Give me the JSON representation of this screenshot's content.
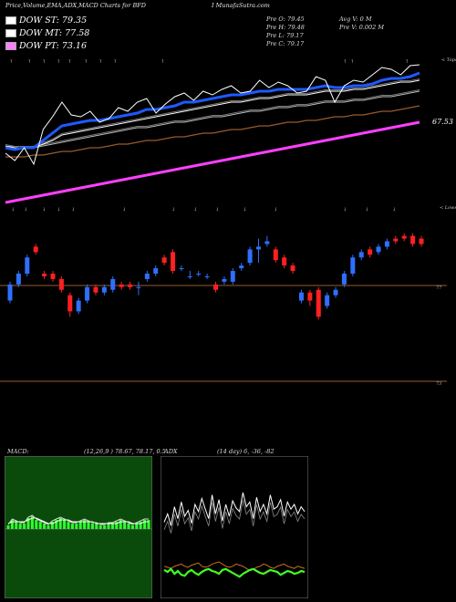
{
  "header": {
    "title": "Price,Volume,EMA,ADX,MACD Charts for BFD",
    "site": "I MunafaSutra.com"
  },
  "legend": [
    {
      "label": "DOW ST: 79.35",
      "color": "#ffffff"
    },
    {
      "label": "DOW MT: 77.58",
      "color": "#ffffff"
    },
    {
      "label": "DOW PT: 73.16",
      "color": "#ff80ff"
    }
  ],
  "ohlc": {
    "open": "Pre  O: 79.45",
    "high": "Pre  H: 79.48",
    "low": "Pre  L: 79.17",
    "close": "Pre  C: 79.17"
  },
  "volume": {
    "avg": "Avg V: 0  M",
    "pre": "Pre  V: 0.002  M"
  },
  "colors": {
    "up": "#2f6fff",
    "down": "#ff2020",
    "ema_fast": "#1e5aff",
    "ema_slow": "#9a5a2a",
    "dow_pt": "#ff40ff",
    "macd_bg": "#0a4a0a",
    "adx_line": "#ffffff",
    "di_plus": "#40ff20",
    "di_minus": "#d07020"
  },
  "chart_data": [
    {
      "type": "line",
      "name": "price-ema",
      "labels": {
        "right_value": "67.53",
        "top_note": "< Tops",
        "low_note": "< Lows"
      },
      "series": [
        {
          "name": "price",
          "values": [
            74.6,
            74.2,
            74.9,
            74.0,
            75.9,
            76.6,
            77.4,
            76.7,
            76.6,
            76.9,
            76.3,
            76.5,
            77.1,
            76.9,
            77.4,
            77.6,
            76.8,
            77.3,
            77.7,
            77.9,
            77.5,
            78.0,
            77.8,
            78.1,
            78.3,
            77.9,
            78.0,
            78.6,
            78.2,
            78.5,
            78.3,
            77.9,
            78.0,
            78.8,
            78.6,
            77.4,
            78.3,
            78.6,
            78.5,
            78.9,
            79.3,
            79.2,
            78.9,
            79.4,
            79.45
          ]
        },
        {
          "name": "ema-short",
          "values": [
            74.9,
            74.8,
            74.9,
            74.9,
            75.3,
            75.7,
            76.1,
            76.2,
            76.3,
            76.4,
            76.4,
            76.5,
            76.6,
            76.7,
            76.8,
            77.0,
            77.0,
            77.1,
            77.2,
            77.4,
            77.4,
            77.5,
            77.6,
            77.7,
            77.8,
            77.8,
            77.9,
            78.0,
            78.0,
            78.1,
            78.1,
            78.1,
            78.1,
            78.2,
            78.3,
            78.2,
            78.2,
            78.3,
            78.3,
            78.4,
            78.6,
            78.7,
            78.7,
            78.8,
            79.0
          ]
        },
        {
          "name": "ema-medium",
          "values": [
            75.0,
            74.9,
            74.9,
            74.9,
            75.1,
            75.3,
            75.6,
            75.7,
            75.8,
            75.9,
            76.0,
            76.1,
            76.2,
            76.3,
            76.4,
            76.5,
            76.6,
            76.7,
            76.8,
            76.9,
            77.0,
            77.1,
            77.2,
            77.3,
            77.4,
            77.4,
            77.5,
            77.6,
            77.6,
            77.7,
            77.8,
            77.8,
            77.8,
            77.9,
            78.0,
            78.0,
            78.0,
            78.1,
            78.1,
            78.2,
            78.3,
            78.4,
            78.5,
            78.5,
            78.6
          ]
        },
        {
          "name": "ema-long",
          "values": [
            74.9,
            74.9,
            74.9,
            74.9,
            75.0,
            75.1,
            75.2,
            75.3,
            75.4,
            75.5,
            75.6,
            75.7,
            75.8,
            75.9,
            76.0,
            76.0,
            76.1,
            76.2,
            76.3,
            76.3,
            76.4,
            76.5,
            76.6,
            76.6,
            76.7,
            76.8,
            76.9,
            76.9,
            77.0,
            77.1,
            77.1,
            77.2,
            77.2,
            77.3,
            77.4,
            77.4,
            77.4,
            77.5,
            77.5,
            77.6,
            77.7,
            77.7,
            77.8,
            77.9,
            78.0
          ]
        },
        {
          "name": "ema-slow",
          "values": [
            74.4,
            74.4,
            74.4,
            74.5,
            74.5,
            74.6,
            74.7,
            74.7,
            74.8,
            74.9,
            74.9,
            75.0,
            75.1,
            75.1,
            75.2,
            75.3,
            75.3,
            75.4,
            75.5,
            75.5,
            75.6,
            75.7,
            75.7,
            75.8,
            75.9,
            75.9,
            76.0,
            76.1,
            76.1,
            76.2,
            76.3,
            76.3,
            76.4,
            76.4,
            76.5,
            76.6,
            76.6,
            76.7,
            76.7,
            76.8,
            76.9,
            76.9,
            77.0,
            77.1,
            77.2
          ]
        },
        {
          "name": "dow-pt",
          "values": [
            71.9,
            72.0,
            72.1,
            72.2,
            72.3,
            72.4,
            72.5,
            72.6,
            72.7,
            72.8,
            72.9,
            73.0,
            73.1,
            73.2,
            73.3,
            73.4,
            73.5,
            73.6,
            73.7,
            73.8,
            73.9,
            74.0,
            74.1,
            74.2,
            74.3,
            74.4,
            74.5,
            74.6,
            74.7,
            74.8,
            74.9,
            75.0,
            75.1,
            75.2,
            75.3,
            75.4,
            75.5,
            75.6,
            75.7,
            75.8,
            75.9,
            76.0,
            76.1,
            76.2,
            76.3
          ]
        }
      ]
    },
    {
      "type": "candlestick",
      "name": "candles",
      "y_labels": [
        "77",
        "73"
      ],
      "candles": [
        {
          "o": 76.6,
          "c": 77.2,
          "h": 77.3,
          "l": 76.5
        },
        {
          "o": 77.2,
          "c": 77.6,
          "h": 77.7,
          "l": 77.1
        },
        {
          "o": 77.6,
          "c": 78.2,
          "h": 78.3,
          "l": 77.5
        },
        {
          "o": 78.6,
          "c": 78.4,
          "h": 78.7,
          "l": 78.3
        },
        {
          "o": 77.6,
          "c": 77.5,
          "h": 77.7,
          "l": 77.4
        },
        {
          "o": 77.6,
          "c": 77.4,
          "h": 77.7,
          "l": 77.3
        },
        {
          "o": 77.4,
          "c": 77.0,
          "h": 77.5,
          "l": 76.9
        },
        {
          "o": 76.8,
          "c": 76.2,
          "h": 76.9,
          "l": 76.0
        },
        {
          "o": 76.2,
          "c": 76.6,
          "h": 76.7,
          "l": 76.1
        },
        {
          "o": 76.6,
          "c": 77.1,
          "h": 77.2,
          "l": 76.5
        },
        {
          "o": 77.1,
          "c": 76.9,
          "h": 77.2,
          "l": 76.8
        },
        {
          "o": 76.9,
          "c": 77.1,
          "h": 77.2,
          "l": 76.8
        },
        {
          "o": 77.0,
          "c": 77.4,
          "h": 77.5,
          "l": 76.9
        },
        {
          "o": 77.2,
          "c": 77.1,
          "h": 77.3,
          "l": 77.0
        },
        {
          "o": 77.2,
          "c": 77.1,
          "h": 77.3,
          "l": 77.0
        },
        {
          "o": 77.1,
          "c": 77.1,
          "h": 77.3,
          "l": 76.8
        },
        {
          "o": 77.4,
          "c": 77.6,
          "h": 77.7,
          "l": 77.3
        },
        {
          "o": 77.6,
          "c": 77.8,
          "h": 77.9,
          "l": 77.5
        },
        {
          "o": 78.2,
          "c": 78.0,
          "h": 78.3,
          "l": 77.9
        },
        {
          "o": 78.4,
          "c": 77.7,
          "h": 78.5,
          "l": 77.6
        },
        {
          "o": 77.8,
          "c": 77.8,
          "h": 77.9,
          "l": 77.7
        },
        {
          "o": 77.5,
          "c": 77.5,
          "h": 77.7,
          "l": 77.4
        },
        {
          "o": 77.6,
          "c": 77.6,
          "h": 77.7,
          "l": 77.5
        },
        {
          "o": 77.5,
          "c": 77.5,
          "h": 77.6,
          "l": 77.4
        },
        {
          "o": 77.2,
          "c": 77.0,
          "h": 77.3,
          "l": 76.9
        },
        {
          "o": 77.3,
          "c": 77.4,
          "h": 77.5,
          "l": 77.2
        },
        {
          "o": 77.3,
          "c": 77.7,
          "h": 77.8,
          "l": 77.2
        },
        {
          "o": 77.8,
          "c": 77.9,
          "h": 78.0,
          "l": 77.7
        },
        {
          "o": 78.0,
          "c": 78.5,
          "h": 78.6,
          "l": 77.9
        },
        {
          "o": 78.5,
          "c": 78.6,
          "h": 78.9,
          "l": 78.0
        },
        {
          "o": 78.7,
          "c": 78.8,
          "h": 79.0,
          "l": 78.6
        },
        {
          "o": 78.5,
          "c": 78.1,
          "h": 78.6,
          "l": 78.0
        },
        {
          "o": 78.2,
          "c": 77.9,
          "h": 78.3,
          "l": 77.8
        },
        {
          "o": 77.9,
          "c": 77.7,
          "h": 78.0,
          "l": 77.6
        },
        {
          "o": 76.6,
          "c": 76.9,
          "h": 77.0,
          "l": 76.5
        },
        {
          "o": 76.9,
          "c": 76.6,
          "h": 77.0,
          "l": 76.4
        },
        {
          "o": 77.0,
          "c": 76.0,
          "h": 77.1,
          "l": 75.9
        },
        {
          "o": 76.4,
          "c": 76.8,
          "h": 76.9,
          "l": 76.3
        },
        {
          "o": 76.8,
          "c": 77.0,
          "h": 77.1,
          "l": 76.7
        },
        {
          "o": 77.2,
          "c": 77.6,
          "h": 77.7,
          "l": 77.1
        },
        {
          "o": 77.6,
          "c": 78.2,
          "h": 78.3,
          "l": 77.5
        },
        {
          "o": 78.2,
          "c": 78.4,
          "h": 78.5,
          "l": 78.1
        },
        {
          "o": 78.5,
          "c": 78.3,
          "h": 78.6,
          "l": 78.2
        },
        {
          "o": 78.4,
          "c": 78.6,
          "h": 78.7,
          "l": 78.3
        },
        {
          "o": 78.6,
          "c": 78.8,
          "h": 78.9,
          "l": 78.5
        },
        {
          "o": 78.9,
          "c": 78.8,
          "h": 79.0,
          "l": 78.7
        },
        {
          "o": 79.0,
          "c": 78.9,
          "h": 79.1,
          "l": 78.8
        },
        {
          "o": 79.0,
          "c": 78.7,
          "h": 79.1,
          "l": 78.6
        },
        {
          "o": 78.9,
          "c": 78.7,
          "h": 79.0,
          "l": 78.6
        }
      ]
    },
    {
      "type": "area",
      "name": "macd",
      "label": "MACD:",
      "params": "(12,26,9 ) 78.67, 78.17, 0.5",
      "macd": [
        0.2,
        0.5,
        0.4,
        0.3,
        0.3,
        0.6,
        0.7,
        0.5,
        0.4,
        0.3,
        0.2,
        0.4,
        0.5,
        0.6,
        0.5,
        0.4,
        0.3,
        0.3,
        0.4,
        0.5,
        0.4,
        0.3,
        0.3,
        0.2,
        0.2,
        0.3,
        0.3,
        0.4,
        0.5,
        0.4,
        0.3,
        0.2,
        0.3,
        0.4,
        0.5,
        0.5
      ],
      "signal": [
        0.3,
        0.4,
        0.4,
        0.4,
        0.4,
        0.5,
        0.6,
        0.6,
        0.5,
        0.4,
        0.3,
        0.3,
        0.4,
        0.5,
        0.5,
        0.5,
        0.4,
        0.4,
        0.4,
        0.4,
        0.4,
        0.4,
        0.3,
        0.3,
        0.3,
        0.3,
        0.3,
        0.3,
        0.4,
        0.4,
        0.4,
        0.3,
        0.3,
        0.3,
        0.4,
        0.4
      ]
    },
    {
      "type": "line",
      "name": "adx",
      "label": "ADX",
      "params": "(14 day) 6, -36, -82",
      "series": [
        {
          "name": "adx",
          "values": [
            15,
            22,
            12,
            28,
            18,
            32,
            20,
            25,
            14,
            30,
            24,
            35,
            26,
            18,
            38,
            22,
            34,
            16,
            30,
            20,
            33,
            27,
            24,
            40,
            28,
            32,
            18,
            36,
            24,
            30,
            22,
            38,
            26,
            28,
            34,
            20,
            32,
            26,
            30,
            22,
            28,
            24
          ]
        },
        {
          "name": "+DI",
          "values": [
            62,
            60,
            63,
            58,
            61,
            57,
            56,
            60,
            62,
            59,
            57,
            60,
            62,
            63,
            61,
            60,
            58,
            62,
            63,
            61,
            59,
            57,
            55,
            58,
            60,
            62,
            63,
            61,
            59,
            58,
            60,
            62,
            61,
            60,
            57,
            59,
            61,
            60,
            58,
            59,
            61,
            60
          ]
        },
        {
          "name": "-DI",
          "values": [
            66,
            65,
            64,
            66,
            67,
            68,
            66,
            65,
            67,
            68,
            69,
            66,
            65,
            66,
            68,
            69,
            70,
            68,
            66,
            65,
            66,
            68,
            67,
            66,
            64,
            62,
            63,
            65,
            66,
            68,
            67,
            65,
            64,
            66,
            67,
            68,
            66,
            65,
            64,
            66,
            65,
            64
          ]
        }
      ]
    }
  ]
}
